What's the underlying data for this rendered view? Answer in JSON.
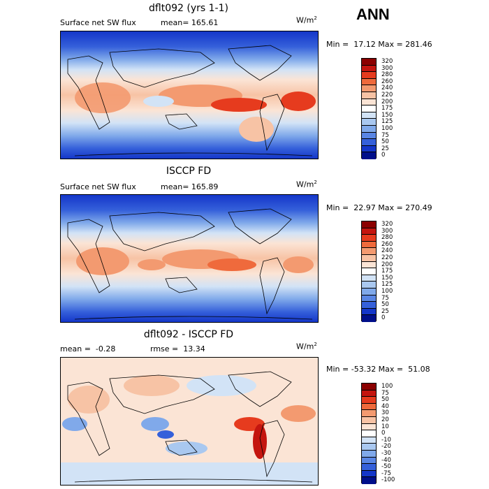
{
  "season": "ANN",
  "units": "W/m",
  "units_sup": "2",
  "panels": [
    {
      "title": "dflt092 (yrs 1-1)",
      "left_text": "Surface net SW flux",
      "right_text": "mean= 165.61",
      "min_max": "Min =  17.12 Max = 281.46",
      "colorbar_levels": [
        "320",
        "300",
        "280",
        "260",
        "240",
        "220",
        "200",
        "175",
        "150",
        "125",
        "100",
        "75",
        "50",
        "25",
        "0"
      ],
      "colorbar_colors": [
        "#8b0000",
        "#c4150f",
        "#e63b1e",
        "#ef6a3c",
        "#f39a70",
        "#f7c3a5",
        "#fbe4d5",
        "#ffffff",
        "#d2e3f6",
        "#a9c8f0",
        "#80a9ea",
        "#5a86e4",
        "#3560da",
        "#1436c9",
        "#000f8a"
      ]
    },
    {
      "title": "ISCCP FD",
      "left_text": "Surface net SW flux",
      "right_text": "mean= 165.89",
      "min_max": "Min =  22.97 Max = 270.49",
      "colorbar_levels": [
        "320",
        "300",
        "280",
        "260",
        "240",
        "220",
        "200",
        "175",
        "150",
        "125",
        "100",
        "75",
        "50",
        "25",
        "0"
      ],
      "colorbar_colors": [
        "#8b0000",
        "#c4150f",
        "#e63b1e",
        "#ef6a3c",
        "#f39a70",
        "#f7c3a5",
        "#fbe4d5",
        "#ffffff",
        "#d2e3f6",
        "#a9c8f0",
        "#80a9ea",
        "#5a86e4",
        "#3560da",
        "#1436c9",
        "#000f8a"
      ]
    },
    {
      "title": "dflt092 - ISCCP FD",
      "left_text": "mean =  -0.28",
      "right_text": "rmse =  13.34",
      "min_max": "Min = -53.32 Max =  51.08",
      "colorbar_levels": [
        "100",
        "75",
        "50",
        "40",
        "30",
        "20",
        "10",
        "0",
        "-10",
        "-20",
        "-30",
        "-40",
        "-50",
        "-75",
        "-100"
      ],
      "colorbar_colors": [
        "#8b0000",
        "#c4150f",
        "#e63b1e",
        "#ef6a3c",
        "#f39a70",
        "#f7c3a5",
        "#fbe4d5",
        "#ffffff",
        "#d2e3f6",
        "#a9c8f0",
        "#80a9ea",
        "#5a86e4",
        "#3560da",
        "#1436c9",
        "#000f8a"
      ]
    }
  ]
}
